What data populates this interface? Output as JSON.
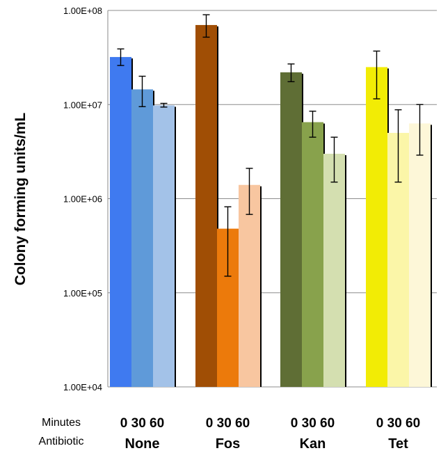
{
  "chart_data": {
    "type": "bar",
    "ylabel": "Colony forming units/mL",
    "yscale": "log",
    "ylim": [
      10000,
      100000000
    ],
    "yticks": [
      "1.00E+04",
      "1.00E+05",
      "1.00E+06",
      "1.00E+07",
      "1.00E+08"
    ],
    "row_labels": {
      "minutes": "Minutes",
      "antibiotic": "Antibiotic"
    },
    "minutes": [
      "0",
      "30",
      "60"
    ],
    "groups": [
      {
        "name": "None",
        "colors": [
          "#3f7af0",
          "#5f9ad9",
          "#a3c2e8"
        ],
        "values": [
          32000000,
          14500000,
          9800000
        ],
        "err_low": [
          26000000,
          9500000,
          9400000
        ],
        "err_high": [
          39000000,
          20000000,
          10300000
        ]
      },
      {
        "name": "Fos",
        "colors": [
          "#a04e05",
          "#ec7a0b",
          "#f8c6a0"
        ],
        "values": [
          70000000,
          480000,
          1400000
        ],
        "err_low": [
          52000000,
          150000,
          680000
        ],
        "err_high": [
          90000000,
          820000,
          2100000
        ]
      },
      {
        "name": "Kan",
        "colors": [
          "#5f6e35",
          "#88a24c",
          "#d4dfb0"
        ],
        "values": [
          22000000,
          6500000,
          3000000
        ],
        "err_low": [
          17500000,
          4500000,
          1500000
        ],
        "err_high": [
          27000000,
          8500000,
          4500000
        ]
      },
      {
        "name": "Tet",
        "colors": [
          "#f2ec05",
          "#fbf6a8",
          "#fdf7d8"
        ],
        "values": [
          25000000,
          5000000,
          6300000
        ],
        "err_low": [
          11500000,
          1500000,
          2900000
        ],
        "err_high": [
          37000000,
          8800000,
          10000000
        ]
      }
    ]
  }
}
